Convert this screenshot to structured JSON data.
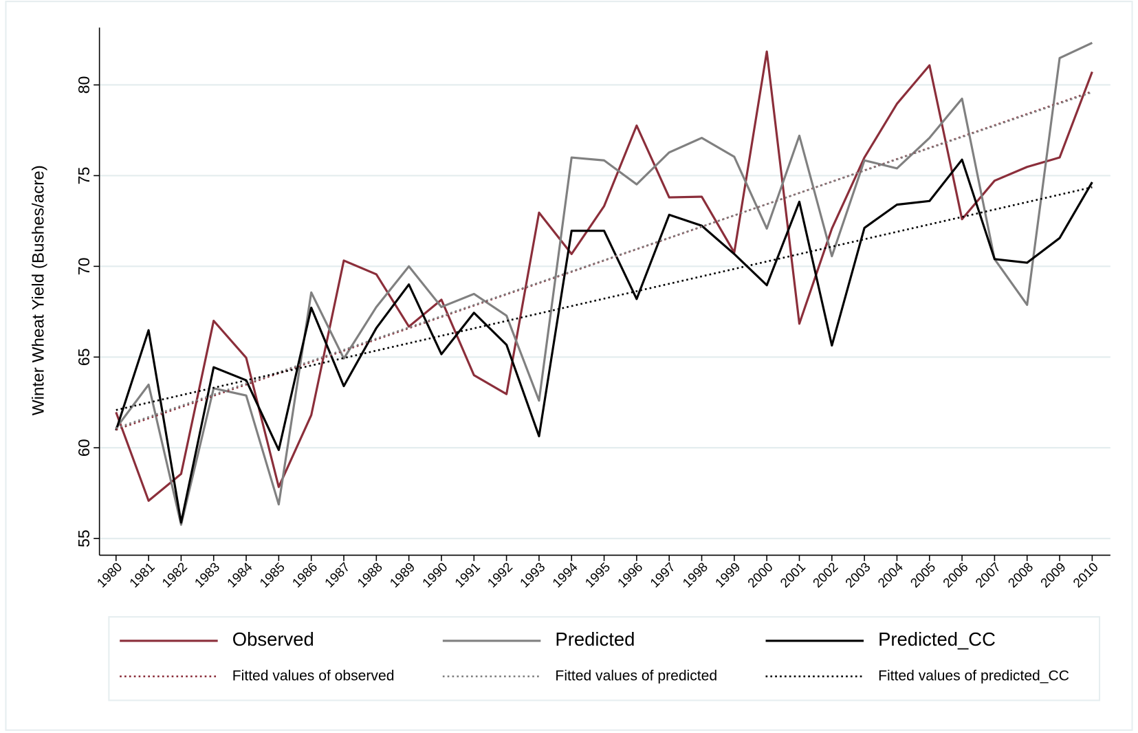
{
  "chart_data": {
    "type": "line",
    "y_label": "Winter Wheat Yield (Bushes/acre)",
    "x": [
      1980,
      1981,
      1982,
      1983,
      1984,
      1985,
      1986,
      1987,
      1988,
      1989,
      1990,
      1991,
      1992,
      1993,
      1994,
      1995,
      1996,
      1997,
      1998,
      1999,
      2000,
      2001,
      2002,
      2003,
      2004,
      2005,
      2006,
      2007,
      2008,
      2009,
      2010
    ],
    "xlim": [
      1979.49,
      2010.56
    ],
    "xticks": [
      1980,
      1981,
      1982,
      1983,
      1984,
      1985,
      1986,
      1987,
      1988,
      1989,
      1990,
      1991,
      1992,
      1993,
      1994,
      1995,
      1996,
      1997,
      1998,
      1999,
      2000,
      2001,
      2002,
      2003,
      2004,
      2005,
      2006,
      2007,
      2008,
      2009,
      2010
    ],
    "ylim": [
      54.08,
      83.16
    ],
    "yticks": [
      55,
      60,
      65,
      70,
      75,
      80
    ],
    "grid": true,
    "legend": "bottom",
    "series": [
      {
        "name": "Observed",
        "color": "#8b2e3a",
        "style": "solid",
        "values": [
          61.96,
          57.08,
          58.56,
          67.0,
          64.96,
          57.84,
          61.8,
          70.32,
          69.56,
          66.68,
          68.16,
          64.0,
          62.96,
          72.96,
          70.68,
          73.32,
          77.76,
          73.8,
          73.84,
          70.76,
          81.84,
          66.84,
          72.08,
          76.0,
          78.96,
          81.08,
          72.6,
          74.72,
          75.48,
          76.0,
          80.72
        ]
      },
      {
        "name": "Predicted",
        "color": "#808080",
        "style": "solid",
        "values": [
          61.08,
          63.48,
          55.76,
          63.28,
          62.88,
          56.88,
          68.56,
          64.92,
          67.76,
          70.0,
          67.76,
          68.48,
          67.28,
          62.6,
          76.0,
          75.84,
          74.52,
          76.28,
          77.08,
          76.04,
          72.08,
          77.2,
          70.56,
          75.84,
          75.4,
          77.08,
          79.24,
          70.4,
          67.88,
          81.48,
          82.32
        ]
      },
      {
        "name": "Predicted_CC",
        "color": "#000000",
        "style": "solid",
        "values": [
          60.96,
          66.48,
          55.88,
          64.44,
          63.72,
          59.88,
          67.72,
          63.4,
          66.6,
          69.0,
          65.16,
          67.44,
          65.68,
          60.64,
          71.96,
          71.96,
          68.2,
          72.84,
          72.24,
          70.68,
          68.96,
          73.56,
          65.64,
          72.12,
          73.4,
          73.6,
          75.88,
          70.4,
          70.2,
          71.56,
          74.64
        ]
      },
      {
        "name": "Fitted values of observed",
        "color": "#8b2e3a",
        "style": "dotted",
        "x": [
          1980,
          2010
        ],
        "values": [
          61.0,
          79.64
        ]
      },
      {
        "name": "Fitted values of predicted",
        "color": "#808080",
        "style": "dotted",
        "x": [
          1980,
          2010
        ],
        "values": [
          61.08,
          79.6
        ]
      },
      {
        "name": "Fitted values of predicted_CC",
        "color": "#000000",
        "style": "dotted",
        "x": [
          1980,
          2010
        ],
        "values": [
          62.08,
          74.36
        ]
      }
    ]
  }
}
